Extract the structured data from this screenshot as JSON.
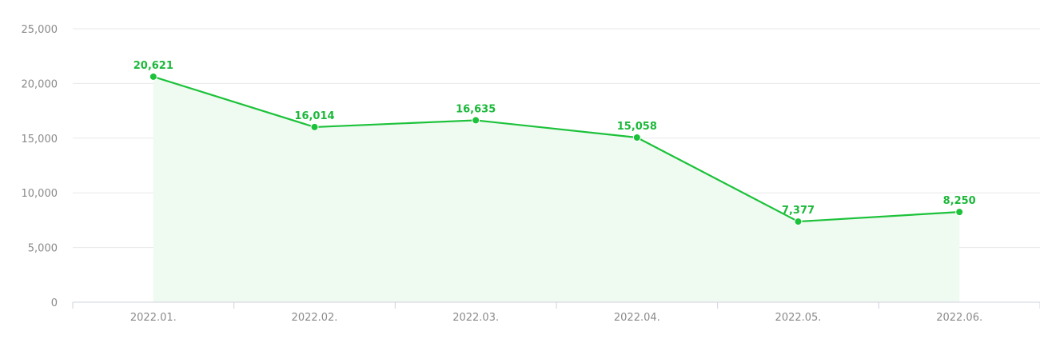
{
  "chart_data": {
    "type": "area",
    "categories": [
      "2022.01.",
      "2022.02.",
      "2022.03.",
      "2022.04.",
      "2022.05.",
      "2022.06."
    ],
    "values": [
      20621,
      16014,
      16635,
      15058,
      7377,
      8250
    ],
    "value_labels": [
      "20,621",
      "16,014",
      "16,635",
      "15,058",
      "7,377",
      "8,250"
    ],
    "y_ticks": [
      0,
      5000,
      10000,
      15000,
      20000,
      25000
    ],
    "y_tick_labels": [
      "0",
      "5,000",
      "10,000",
      "15,000",
      "20,000",
      "25,000"
    ],
    "ylim": [
      0,
      25000
    ],
    "grid": true,
    "title": "",
    "xlabel": "",
    "ylabel": "",
    "colors": {
      "line": "#1cc23a",
      "area": "#effaf1",
      "grid": "#e8e8e8",
      "axis": "#ccd3de",
      "tick_text": "#8a8a8a",
      "label_text": "#1cb83a"
    }
  }
}
